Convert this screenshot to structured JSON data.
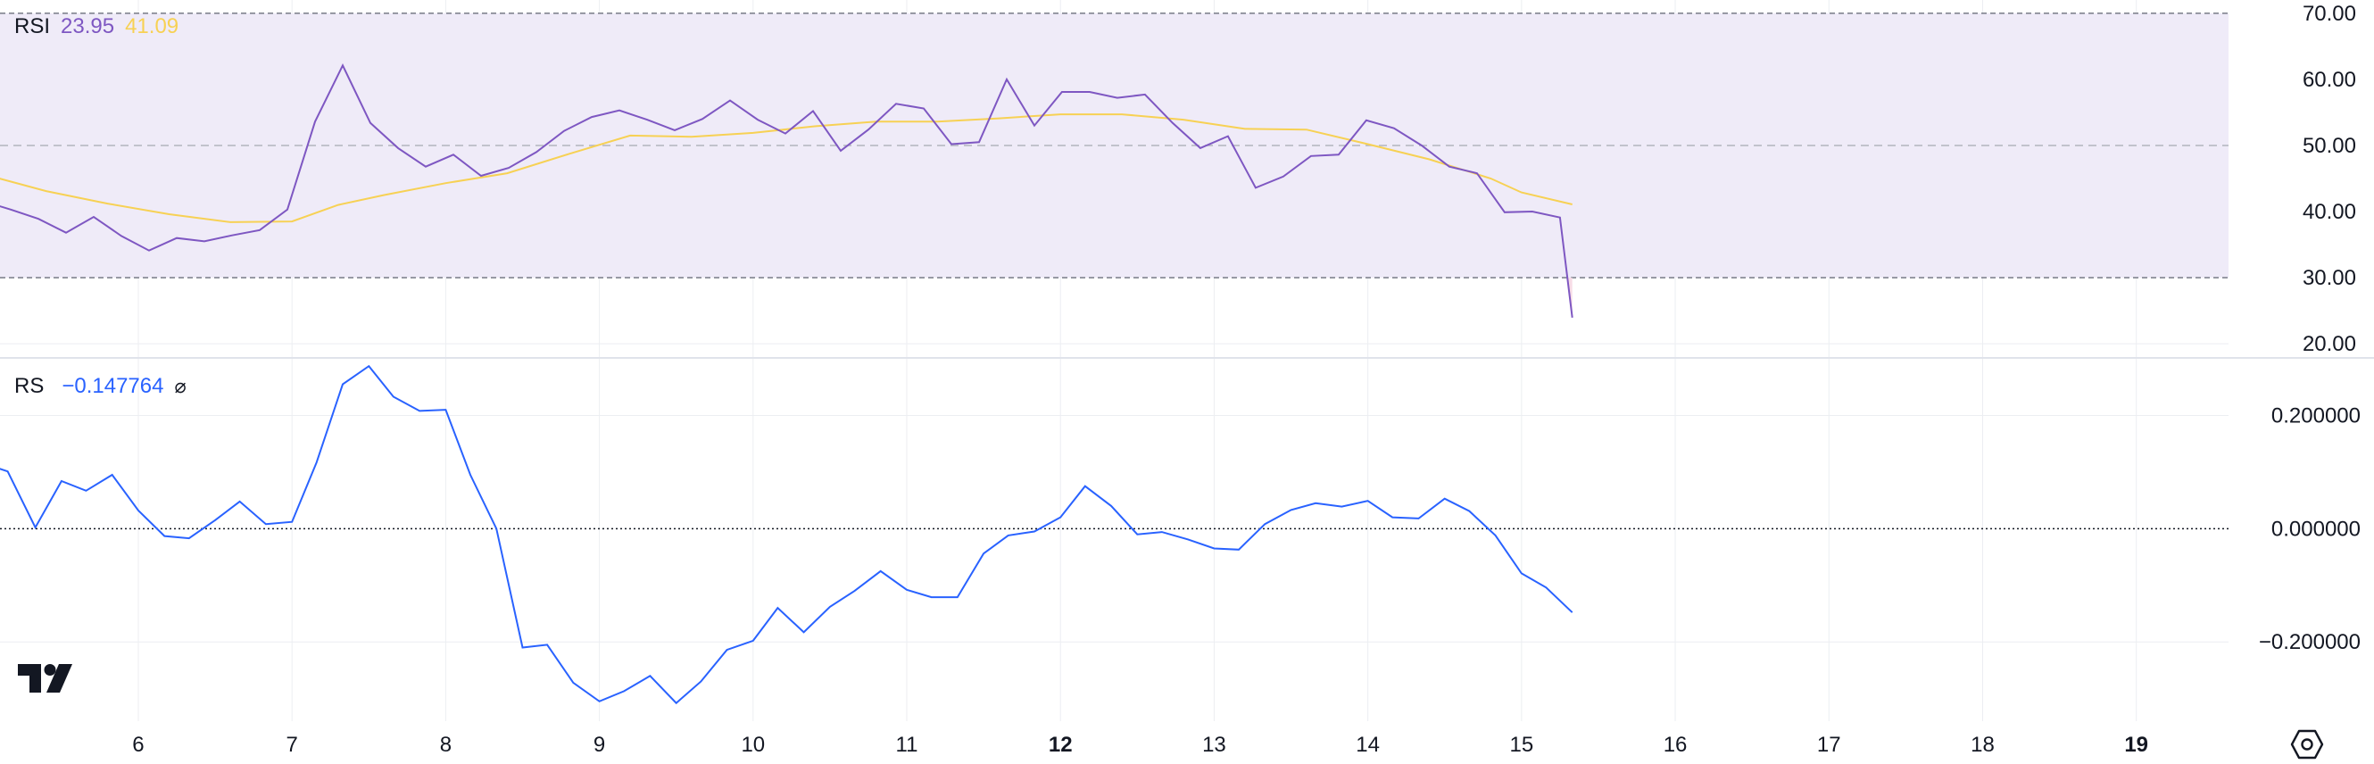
{
  "colors": {
    "rsi_line": "#7E57C2",
    "rsi_ma": "#F7D154",
    "rsi_band": "#EFEBF8",
    "rs_line": "#2962FF",
    "rs_value": "#2962FF",
    "grid": "#ECEEF2",
    "axis_text": "#131722"
  },
  "chart_data": [
    {
      "type": "line",
      "title": "RSI",
      "legend_values": [
        "23.95",
        "41.09"
      ],
      "ylim": [
        18,
        72
      ],
      "y_ticks": [
        "70.00",
        "60.00",
        "50.00",
        "40.00",
        "30.00",
        "20.00"
      ],
      "levels": {
        "upper": 70,
        "middle": 50,
        "lower": 30
      },
      "x_range": [
        5.1,
        19.6
      ],
      "series": [
        {
          "role": "rsi",
          "x": [
            5.0,
            5.17,
            5.35,
            5.53,
            5.71,
            5.89,
            6.07,
            6.25,
            6.43,
            6.61,
            6.79,
            6.97,
            7.15,
            7.33,
            7.51,
            7.69,
            7.87,
            8.05,
            8.23,
            8.41,
            8.59,
            8.77,
            8.95,
            9.13,
            9.31,
            9.49,
            9.67,
            9.85,
            10.03,
            10.21,
            10.39,
            10.57,
            10.75,
            10.93,
            11.11,
            11.29,
            11.47,
            11.65,
            11.83,
            12.01,
            12.19,
            12.37,
            12.55,
            12.73,
            12.91,
            13.09,
            13.27,
            13.45,
            13.63,
            13.81,
            13.99,
            14.17,
            14.35,
            14.53,
            14.71,
            14.89,
            15.07,
            15.25,
            15.33
          ],
          "y": [
            41.5,
            40.3,
            38.9,
            36.8,
            39.2,
            36.3,
            34.1,
            36.0,
            35.5,
            36.4,
            37.2,
            40.3,
            53.6,
            62.1,
            53.4,
            49.6,
            46.8,
            48.6,
            45.4,
            46.6,
            49.0,
            52.2,
            54.3,
            55.3,
            53.9,
            52.3,
            54.0,
            56.8,
            53.9,
            51.8,
            55.2,
            49.2,
            52.4,
            56.3,
            55.6,
            50.2,
            50.5,
            60.0,
            53.0,
            58.1,
            58.1,
            57.2,
            57.7,
            53.4,
            49.6,
            51.4,
            43.6,
            45.3,
            48.4,
            48.6,
            53.8,
            52.6,
            50.0,
            46.8,
            45.8,
            39.9,
            40.0,
            39.1,
            23.95
          ]
        },
        {
          "role": "rsi_ma",
          "x": [
            5.0,
            5.4,
            5.8,
            6.2,
            6.6,
            7.0,
            7.3,
            7.6,
            8.0,
            8.4,
            8.8,
            9.2,
            9.6,
            10.0,
            10.4,
            10.8,
            11.2,
            11.6,
            12.0,
            12.4,
            12.8,
            13.2,
            13.6,
            14.0,
            14.4,
            14.8,
            15.0,
            15.33
          ],
          "y": [
            45.6,
            43.1,
            41.2,
            39.6,
            38.4,
            38.5,
            41.0,
            42.5,
            44.3,
            45.8,
            48.7,
            51.5,
            51.3,
            51.9,
            52.9,
            53.6,
            53.6,
            54.1,
            54.7,
            54.7,
            53.9,
            52.5,
            52.4,
            50.2,
            47.9,
            45.0,
            42.9,
            41.09
          ]
        }
      ]
    },
    {
      "type": "line",
      "title": "RS",
      "legend_value": "−0.147764",
      "legend_symbol": "⌀",
      "ylim": [
        -0.34,
        0.3
      ],
      "y_ticks": [
        "0.200000",
        "0.000000",
        "−0.200000"
      ],
      "y_tick_values": [
        0.2,
        0.0,
        -0.2
      ],
      "zero_line": 0.0,
      "x_range": [
        5.1,
        19.6
      ],
      "series": [
        {
          "role": "rs",
          "x": [
            5.0,
            5.15,
            5.33,
            5.5,
            5.66,
            5.83,
            6.0,
            6.17,
            6.33,
            6.5,
            6.66,
            6.83,
            7.0,
            7.16,
            7.33,
            7.5,
            7.66,
            7.83,
            8.0,
            8.16,
            8.33,
            8.5,
            8.66,
            8.83,
            9.0,
            9.16,
            9.33,
            9.5,
            9.66,
            9.83,
            10.0,
            10.16,
            10.33,
            10.5,
            10.66,
            10.83,
            11.0,
            11.16,
            11.33,
            11.5,
            11.66,
            11.83,
            12.0,
            12.16,
            12.33,
            12.5,
            12.66,
            12.83,
            13.0,
            13.16,
            13.33,
            13.5,
            13.66,
            13.83,
            14.0,
            14.16,
            14.33,
            14.5,
            14.66,
            14.83,
            15.0,
            15.16,
            15.33
          ],
          "y": [
            0.115,
            0.101,
            0.002,
            0.084,
            0.067,
            0.095,
            0.032,
            -0.013,
            -0.017,
            0.015,
            0.048,
            0.008,
            0.012,
            0.117,
            0.255,
            0.287,
            0.233,
            0.208,
            0.21,
            0.095,
            0.0,
            -0.21,
            -0.205,
            -0.272,
            -0.305,
            -0.287,
            -0.26,
            -0.308,
            -0.27,
            -0.214,
            -0.198,
            -0.14,
            -0.183,
            -0.138,
            -0.11,
            -0.075,
            -0.108,
            -0.121,
            -0.121,
            -0.044,
            -0.012,
            -0.005,
            0.02,
            0.075,
            0.04,
            -0.01,
            -0.006,
            -0.019,
            -0.035,
            -0.037,
            0.008,
            0.033,
            0.045,
            0.039,
            0.049,
            0.02,
            0.018,
            0.053,
            0.031,
            -0.012,
            -0.079,
            -0.104,
            -0.148
          ]
        }
      ]
    }
  ],
  "x_axis": {
    "ticks": [
      {
        "x": 6,
        "label": "6",
        "bold": false
      },
      {
        "x": 7,
        "label": "7",
        "bold": false
      },
      {
        "x": 8,
        "label": "8",
        "bold": false
      },
      {
        "x": 9,
        "label": "9",
        "bold": false
      },
      {
        "x": 10,
        "label": "10",
        "bold": false
      },
      {
        "x": 11,
        "label": "11",
        "bold": false
      },
      {
        "x": 12,
        "label": "12",
        "bold": true
      },
      {
        "x": 13,
        "label": "13",
        "bold": false
      },
      {
        "x": 14,
        "label": "14",
        "bold": false
      },
      {
        "x": 15,
        "label": "15",
        "bold": false
      },
      {
        "x": 16,
        "label": "16",
        "bold": false
      },
      {
        "x": 17,
        "label": "17",
        "bold": false
      },
      {
        "x": 18,
        "label": "18",
        "bold": false
      },
      {
        "x": 19,
        "label": "19",
        "bold": true
      }
    ]
  },
  "icons": {
    "logo": "tradingview-logo",
    "settings": "settings-gear-icon"
  }
}
